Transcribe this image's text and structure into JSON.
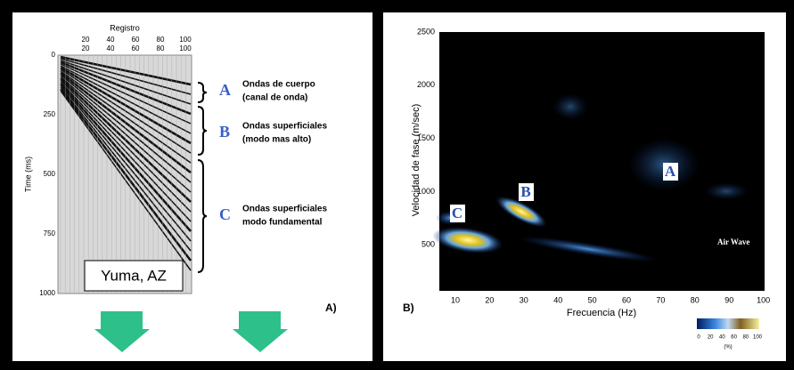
{
  "panel_a": {
    "top_title": "Registro",
    "top_ticks_1": [
      20,
      40,
      60,
      80,
      100
    ],
    "top_ticks_2": [
      20,
      40,
      60,
      80,
      100
    ],
    "y_title": "Time (ms)",
    "y_ticks": [
      0,
      250,
      500,
      750,
      1000
    ],
    "annotations": [
      {
        "letter": "A",
        "line1": "Ondas de cuerpo",
        "line2": "(canal de onda)"
      },
      {
        "letter": "B",
        "line1": "Ondas superficiales",
        "line2": "(modo mas alto)"
      },
      {
        "letter": "C",
        "line1": "Ondas superficiales",
        "line2": "modo fundamental"
      }
    ],
    "site": "Yuma, AZ",
    "panel_label": "A)"
  },
  "panel_b": {
    "y_title": "Velocidad de fase (m/sec)",
    "y_ticks": [
      2500,
      2000,
      1500,
      1000,
      500
    ],
    "x_title": "Frecuencia (Hz)",
    "x_ticks": [
      10,
      20,
      30,
      40,
      50,
      60,
      70,
      80,
      90,
      100
    ],
    "mode_labels": [
      "C",
      "B",
      "A"
    ],
    "air_wave": "Air Wave",
    "colorbar_ticks": [
      0,
      20,
      40,
      60,
      80,
      100
    ],
    "colorbar_unit": "(%)",
    "panel_label": "B)"
  }
}
